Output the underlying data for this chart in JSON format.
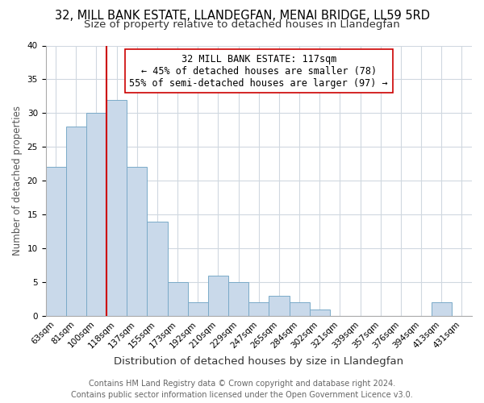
{
  "title": "32, MILL BANK ESTATE, LLANDEGFAN, MENAI BRIDGE, LL59 5RD",
  "subtitle": "Size of property relative to detached houses in Llandegfan",
  "xlabel": "Distribution of detached houses by size in Llandegfan",
  "ylabel": "Number of detached properties",
  "bar_labels": [
    "63sqm",
    "81sqm",
    "100sqm",
    "118sqm",
    "137sqm",
    "155sqm",
    "173sqm",
    "192sqm",
    "210sqm",
    "229sqm",
    "247sqm",
    "265sqm",
    "284sqm",
    "302sqm",
    "321sqm",
    "339sqm",
    "357sqm",
    "376sqm",
    "394sqm",
    "413sqm",
    "431sqm"
  ],
  "bar_values": [
    22,
    28,
    30,
    32,
    22,
    14,
    5,
    2,
    6,
    5,
    2,
    3,
    2,
    1,
    0,
    0,
    0,
    0,
    0,
    2,
    0
  ],
  "bar_color": "#c9d9ea",
  "bar_edge_color": "#7aaac8",
  "vline_index": 3,
  "vline_color": "#cc0000",
  "ylim": [
    0,
    40
  ],
  "annotation_line1": "32 MILL BANK ESTATE: 117sqm",
  "annotation_line2": "← 45% of detached houses are smaller (78)",
  "annotation_line3": "55% of semi-detached houses are larger (97) →",
  "annotation_box_color": "#ffffff",
  "annotation_box_edge": "#cc0000",
  "footer1": "Contains HM Land Registry data © Crown copyright and database right 2024.",
  "footer2": "Contains public sector information licensed under the Open Government Licence v3.0.",
  "title_fontsize": 10.5,
  "subtitle_fontsize": 9.5,
  "xlabel_fontsize": 9.5,
  "ylabel_fontsize": 8.5,
  "tick_fontsize": 7.5,
  "annotation_fontsize": 8.5,
  "footer_fontsize": 7.0,
  "grid_color": "#d0d8e0"
}
